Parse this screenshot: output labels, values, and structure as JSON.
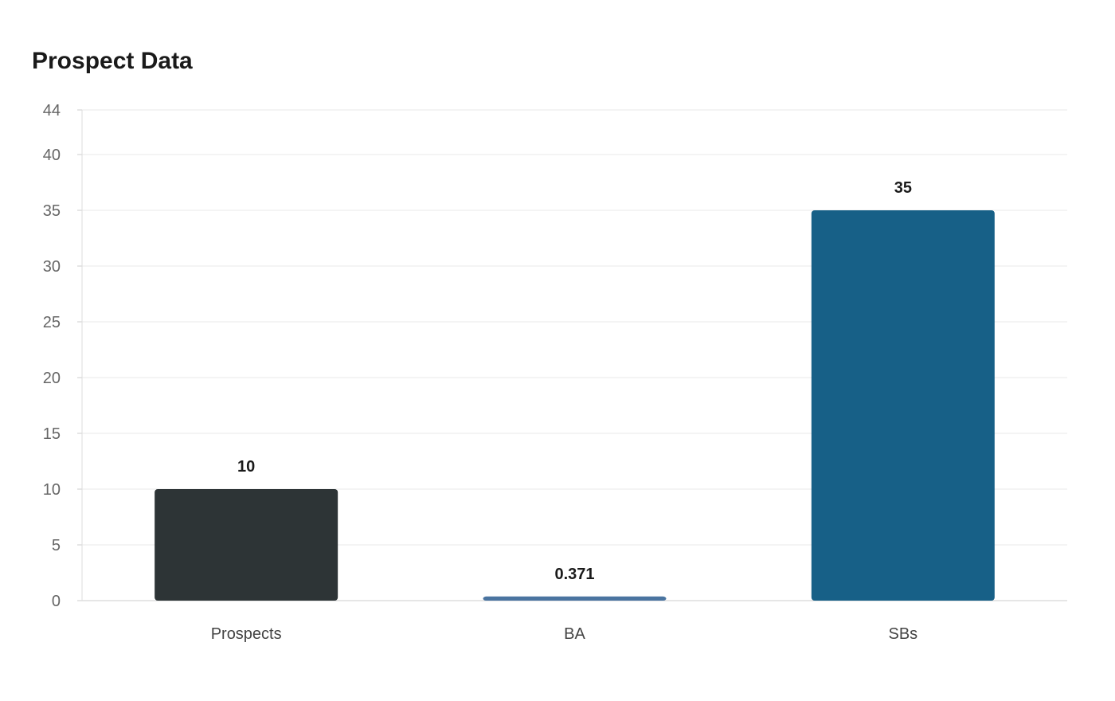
{
  "chart_data": {
    "type": "bar",
    "title": "Prospect Data",
    "xlabel": "",
    "ylabel": "",
    "categories": [
      "Prospects",
      "BA",
      "SBs"
    ],
    "values": [
      10,
      0.371,
      35
    ],
    "value_labels": [
      "10",
      "0.371",
      "35"
    ],
    "colors": [
      "#2d3436",
      "#4a74a0",
      "#176087"
    ],
    "ylim": [
      0,
      44
    ],
    "yticks": [
      0,
      5,
      10,
      15,
      20,
      25,
      30,
      35,
      40,
      44
    ],
    "grid": true,
    "legend": "none"
  }
}
